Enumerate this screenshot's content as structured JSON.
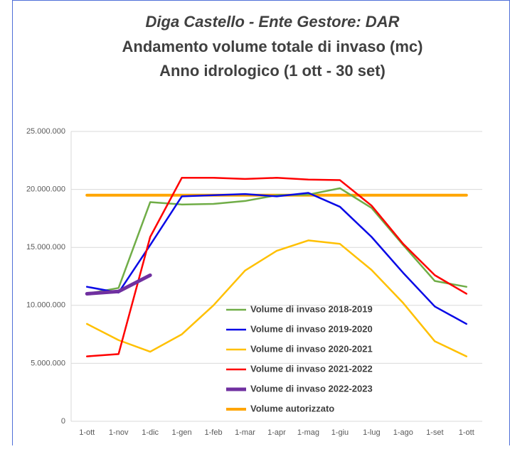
{
  "chart_data": {
    "type": "line",
    "title": [
      "Diga Castello - Ente Gestore: DAR",
      "Andamento volume totale di invaso (mc)",
      "Anno idrologico (1 ott - 30 set)"
    ],
    "categories": [
      "1-ott",
      "1-nov",
      "1-dic",
      "1-gen",
      "1-feb",
      "1-mar",
      "1-apr",
      "1-mag",
      "1-giu",
      "1-lug",
      "1-ago",
      "1-set",
      "1-ott"
    ],
    "series": [
      {
        "name": "Volume di invaso 2018-2019",
        "color": "#70ad47",
        "width": 2.5,
        "values": [
          11000000,
          11500000,
          18900000,
          18700000,
          18750000,
          19000000,
          19500000,
          19550000,
          20100000,
          18400000,
          15200000,
          12100000,
          11600000
        ]
      },
      {
        "name": "Volume di invaso 2019-2020",
        "color": "#0a0ae6",
        "width": 2.5,
        "values": [
          11600000,
          11100000,
          15200000,
          19400000,
          19500000,
          19600000,
          19400000,
          19700000,
          18500000,
          15900000,
          12800000,
          9900000,
          8400000
        ]
      },
      {
        "name": "Volume di invaso 2020-2021",
        "color": "#ffc000",
        "width": 2.5,
        "values": [
          8400000,
          7000000,
          6000000,
          7500000,
          10000000,
          13000000,
          14700000,
          15600000,
          15300000,
          13050000,
          10200000,
          6900000,
          5600000
        ]
      },
      {
        "name": "Volume di invaso 2021-2022",
        "color": "#ff0000",
        "width": 2.5,
        "values": [
          5600000,
          5800000,
          15900000,
          21000000,
          21000000,
          20900000,
          21000000,
          20850000,
          20800000,
          18600000,
          15300000,
          12600000,
          11000000
        ]
      },
      {
        "name": "Volume di invaso 2022-2023",
        "color": "#7030a0",
        "width": 5,
        "values": [
          11000000,
          11200000,
          12600000,
          null,
          null,
          null,
          null,
          null,
          null,
          null,
          null,
          null,
          null
        ]
      },
      {
        "name": "Volume autorizzato",
        "color": "#ffa500",
        "width": 4,
        "values": [
          19500000,
          19500000,
          19500000,
          19500000,
          19500000,
          19500000,
          19500000,
          19500000,
          19500000,
          19500000,
          19500000,
          19500000,
          19500000
        ]
      }
    ],
    "ylim": [
      0,
      25000000
    ],
    "yticks": [
      0,
      {
        "value": 5000000,
        "label": "5.000.000"
      },
      {
        "value": 10000000,
        "label": "10.000.000"
      },
      {
        "value": 15000000,
        "label": "15.000.000"
      },
      {
        "value": 20000000,
        "label": "20.000.000"
      },
      {
        "value": 25000000,
        "label": "25.000.000"
      }
    ],
    "grid": true
  }
}
